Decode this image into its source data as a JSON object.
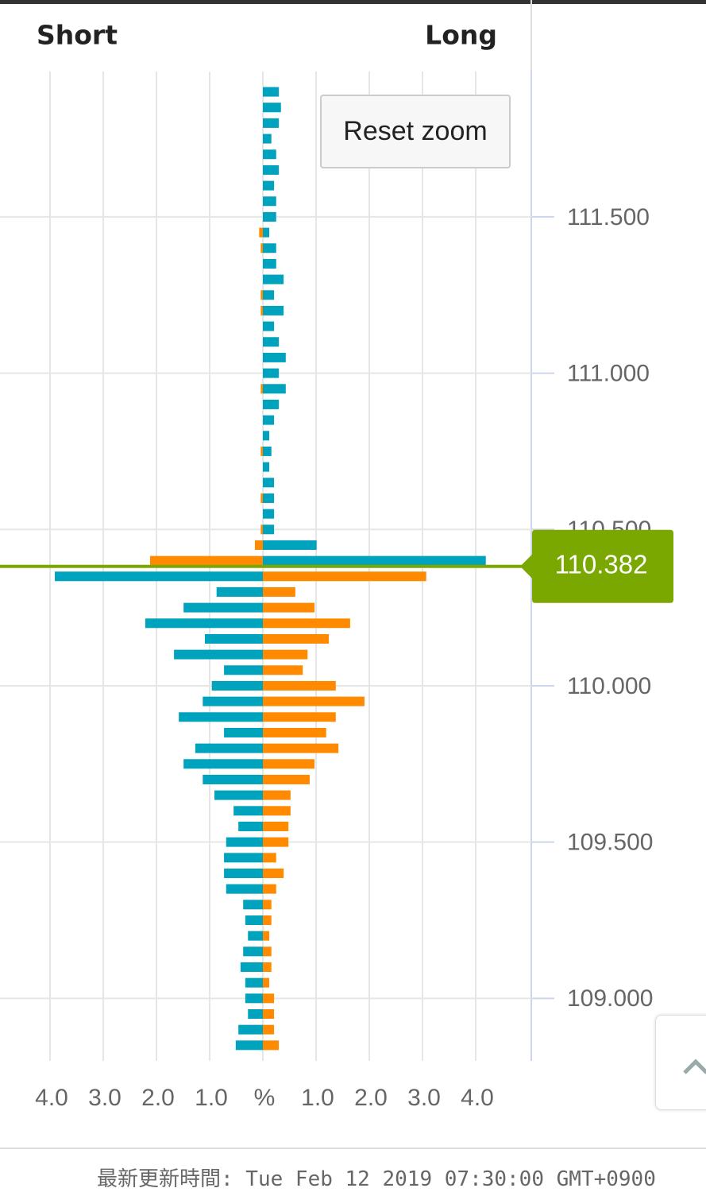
{
  "chart_data": {
    "type": "bar",
    "orientation": "horizontal",
    "y": [
      111.9,
      111.85,
      111.8,
      111.75,
      111.7,
      111.65,
      111.6,
      111.55,
      111.5,
      111.45,
      111.4,
      111.35,
      111.3,
      111.25,
      111.2,
      111.15,
      111.1,
      111.05,
      111.0,
      110.95,
      110.9,
      110.85,
      110.8,
      110.75,
      110.7,
      110.65,
      110.6,
      110.55,
      110.5,
      110.45,
      110.4,
      110.35,
      110.3,
      110.25,
      110.2,
      110.15,
      110.1,
      110.05,
      110.0,
      109.95,
      109.9,
      109.85,
      109.8,
      109.75,
      109.7,
      109.65,
      109.6,
      109.55,
      109.5,
      109.45,
      109.4,
      109.35,
      109.3,
      109.25,
      109.2,
      109.15,
      109.1,
      109.05,
      109.0,
      108.95,
      108.9,
      108.85
    ],
    "series": [
      {
        "name": "Short",
        "side": "left",
        "color_above": "#ff8a00",
        "color_below": "#00a3bd",
        "values": [
          0,
          0,
          0,
          0,
          0,
          0,
          0,
          0,
          0,
          0.07,
          0.04,
          0,
          0,
          0.04,
          0.04,
          0,
          0,
          0,
          0,
          0.04,
          0,
          0,
          0,
          0.04,
          0,
          0,
          0.04,
          0,
          0.04,
          0.15,
          2.12,
          3.91,
          0.87,
          1.49,
          2.21,
          1.09,
          1.67,
          0.73,
          0.96,
          1.13,
          1.58,
          0.73,
          1.27,
          1.49,
          1.13,
          0.91,
          0.55,
          0.46,
          0.69,
          0.73,
          0.73,
          0.69,
          0.37,
          0.33,
          0.28,
          0.37,
          0.42,
          0.33,
          0.33,
          0.28,
          0.46,
          0.51
        ]
      },
      {
        "name": "Long",
        "side": "right",
        "color_above": "#00a3bd",
        "color_below": "#ff8a00",
        "values": [
          0.3,
          0.34,
          0.3,
          0.16,
          0.25,
          0.3,
          0.21,
          0.25,
          0.25,
          0.12,
          0.25,
          0.25,
          0.39,
          0.21,
          0.39,
          0.21,
          0.3,
          0.43,
          0.3,
          0.43,
          0.3,
          0.21,
          0.12,
          0.16,
          0.12,
          0.21,
          0.21,
          0.21,
          0.21,
          1.01,
          4.19,
          3.07,
          0.61,
          0.97,
          1.64,
          1.24,
          0.84,
          0.75,
          1.37,
          1.91,
          1.37,
          1.19,
          1.42,
          0.97,
          0.88,
          0.52,
          0.52,
          0.48,
          0.48,
          0.25,
          0.39,
          0.25,
          0.16,
          0.16,
          0.12,
          0.16,
          0.16,
          0.12,
          0.21,
          0.21,
          0.21,
          0.3
        ]
      }
    ],
    "current_price": 110.382,
    "current_price_color": "#7aa800",
    "xlim": [
      -5,
      5
    ],
    "xticks": [
      {
        "value": -4,
        "label": "4.0"
      },
      {
        "value": -3,
        "label": "3.0"
      },
      {
        "value": -2,
        "label": "2.0"
      },
      {
        "value": -1,
        "label": "1.0"
      },
      {
        "value": 0,
        "label": "%"
      },
      {
        "value": 1,
        "label": "1.0"
      },
      {
        "value": 2,
        "label": "2.0"
      },
      {
        "value": 3,
        "label": "3.0"
      },
      {
        "value": 4,
        "label": "4.0"
      }
    ],
    "ylim": [
      108.8,
      111.965
    ],
    "yticks": [
      {
        "value": 111.5,
        "label": "111.500"
      },
      {
        "value": 111.0,
        "label": "111.000"
      },
      {
        "value": 110.5,
        "label": "110.500"
      },
      {
        "value": 110.0,
        "label": "110.000"
      },
      {
        "value": 109.5,
        "label": "109.500"
      },
      {
        "value": 109.0,
        "label": "109.000"
      }
    ],
    "grid": true
  },
  "reset_zoom": "Reset zoom",
  "footer": "最新更新時間: Tue Feb 12 2019 07:30:00 GMT+0900"
}
